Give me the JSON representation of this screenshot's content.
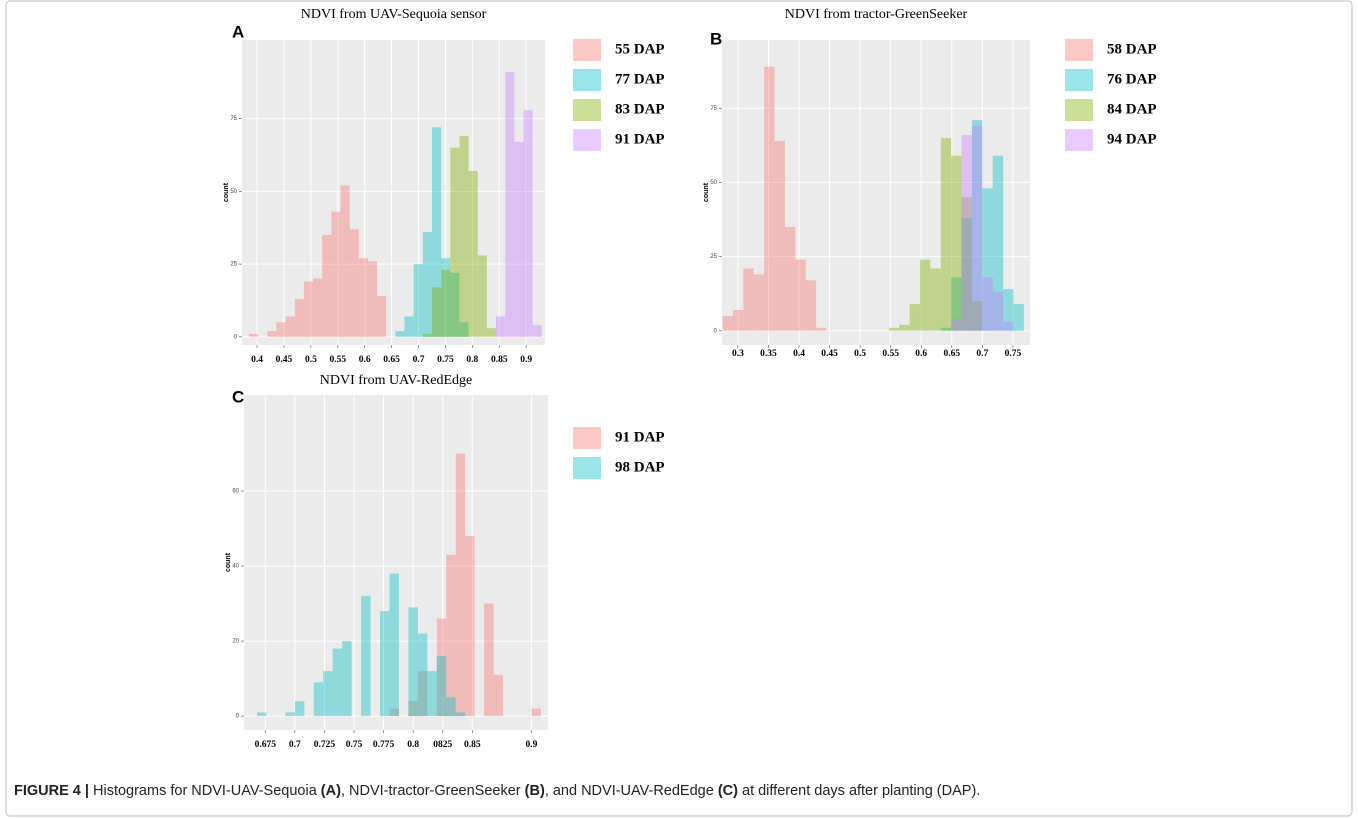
{
  "chart_data": [
    {
      "type": "histogram",
      "panel_label": "A",
      "title": "NDVI from UAV-Sequoia sensor",
      "y_label": "count",
      "bins": [
        0.385,
        0.402,
        0.419,
        0.436,
        0.453,
        0.47,
        0.487,
        0.504,
        0.521,
        0.538,
        0.555,
        0.572,
        0.589,
        0.606,
        0.623,
        0.64,
        0.657,
        0.674,
        0.691,
        0.708,
        0.725,
        0.742,
        0.759,
        0.776,
        0.793,
        0.81,
        0.827,
        0.844,
        0.861,
        0.878,
        0.895,
        0.912,
        0.929
      ],
      "series": [
        {
          "name": "55 DAP",
          "color": "#f8766d",
          "values": [
            1,
            0,
            2,
            5,
            7,
            13,
            19,
            20,
            35,
            43,
            52,
            37,
            27,
            26,
            14,
            0,
            0,
            0,
            0,
            0,
            0,
            0,
            0,
            0,
            0,
            0,
            0,
            0,
            0,
            0,
            0,
            0
          ]
        },
        {
          "name": "77 DAP",
          "color": "#00bfc4",
          "values": [
            0,
            0,
            0,
            0,
            0,
            0,
            0,
            0,
            0,
            0,
            0,
            0,
            0,
            0,
            0,
            0,
            2,
            7,
            25,
            36,
            72,
            27,
            22,
            5,
            0,
            0,
            0,
            0,
            0,
            0,
            0,
            0
          ]
        },
        {
          "name": "83 DAP",
          "color": "#7cae00",
          "values": [
            0,
            0,
            0,
            0,
            0,
            0,
            0,
            0,
            0,
            0,
            0,
            0,
            0,
            0,
            0,
            0,
            0,
            0,
            0,
            1,
            17,
            23,
            65,
            69,
            57,
            28,
            3,
            0,
            0,
            0,
            0,
            0
          ]
        },
        {
          "name": "91 DAP",
          "color": "#c77cff",
          "values": [
            0,
            0,
            0,
            0,
            0,
            0,
            0,
            0,
            0,
            0,
            0,
            0,
            0,
            0,
            0,
            0,
            0,
            0,
            0,
            0,
            0,
            0,
            0,
            0,
            0,
            0,
            0,
            7,
            91,
            67,
            78,
            4
          ]
        }
      ],
      "alpha": 0.4,
      "grid": true,
      "xlim": [
        0.372,
        0.935
      ],
      "xticks": [
        0.4,
        0.45,
        0.5,
        0.55,
        0.6,
        0.65,
        0.7,
        0.75,
        0.8,
        0.85,
        0.9
      ],
      "ylim": [
        -2.8,
        102
      ],
      "yticks": [
        0,
        25,
        50,
        75
      ]
    },
    {
      "type": "histogram",
      "panel_label": "B",
      "title": "NDVI from tractor-GreenSeeker",
      "y_label": "count",
      "bins": [
        0.275,
        0.292,
        0.309,
        0.326,
        0.343,
        0.36,
        0.377,
        0.394,
        0.411,
        0.428,
        0.445,
        0.462,
        0.479,
        0.496,
        0.513,
        0.53,
        0.547,
        0.564,
        0.581,
        0.598,
        0.615,
        0.632,
        0.649,
        0.666,
        0.683,
        0.7,
        0.717,
        0.734,
        0.751,
        0.768
      ],
      "series": [
        {
          "name": "58 DAP",
          "color": "#f8766d",
          "values": [
            5,
            7,
            21,
            19,
            89,
            64,
            35,
            24,
            17,
            1,
            0,
            0,
            0,
            0,
            0,
            0,
            0,
            0,
            0,
            0,
            0,
            0,
            0,
            0,
            0,
            0,
            0,
            0,
            0
          ]
        },
        {
          "name": "76 DAP",
          "color": "#00bfc4",
          "values": [
            0,
            0,
            0,
            0,
            0,
            0,
            0,
            0,
            0,
            0,
            0,
            0,
            0,
            0,
            0,
            0,
            0,
            0,
            0,
            0,
            0,
            1,
            18,
            38,
            71,
            48,
            59,
            14,
            9
          ]
        },
        {
          "name": "84 DAP",
          "color": "#7cae00",
          "values": [
            0,
            0,
            0,
            0,
            0,
            0,
            0,
            0,
            0,
            0,
            0,
            0,
            0,
            0,
            0,
            0,
            1,
            2,
            9,
            24,
            21,
            65,
            59,
            45,
            10,
            0,
            0,
            0,
            0
          ]
        },
        {
          "name": "94 DAP",
          "color": "#c77cff",
          "values": [
            0,
            0,
            0,
            0,
            0,
            0,
            0,
            0,
            0,
            0,
            0,
            0,
            0,
            0,
            0,
            0,
            0,
            0,
            0,
            0,
            0,
            0,
            4,
            66,
            69,
            18,
            13,
            3,
            0
          ]
        }
      ],
      "alpha": 0.4,
      "grid": true,
      "xlim": [
        0.274,
        0.778
      ],
      "xticks": [
        0.3,
        0.35,
        0.4,
        0.45,
        0.5,
        0.55,
        0.6,
        0.65,
        0.7,
        0.75
      ],
      "ylim": [
        -4.8,
        98
      ],
      "yticks": [
        0,
        25,
        50,
        75
      ]
    },
    {
      "type": "histogram",
      "panel_label": "C",
      "title": "NDVI from UAV-RedEdge",
      "y_label": "count",
      "bins": [
        0.668,
        0.676,
        0.684,
        0.692,
        0.7,
        0.708,
        0.716,
        0.724,
        0.732,
        0.74,
        0.748,
        0.756,
        0.764,
        0.772,
        0.78,
        0.788,
        0.796,
        0.804,
        0.812,
        0.82,
        0.828,
        0.836,
        0.844,
        0.852,
        0.86,
        0.868,
        0.876,
        0.884,
        0.892,
        0.9,
        0.908
      ],
      "series": [
        {
          "name": "91 DAP",
          "color": "#f8766d",
          "values": [
            0,
            0,
            0,
            0,
            0,
            0,
            0,
            0,
            0,
            0,
            0,
            0,
            0,
            0,
            2,
            0,
            4,
            12,
            0,
            26,
            43,
            70,
            48,
            0,
            30,
            11,
            0,
            0,
            0,
            2
          ]
        },
        {
          "name": "98 DAP",
          "color": "#00bfc4",
          "values": [
            1,
            0,
            0,
            1,
            4,
            0,
            9,
            12,
            18,
            20,
            0,
            32,
            0,
            28,
            38,
            0,
            29,
            22,
            12,
            16,
            5,
            1,
            0,
            0,
            0,
            0,
            0,
            0,
            0,
            0
          ]
        }
      ],
      "alpha": 0.4,
      "grid": true,
      "xlim": [
        0.657,
        0.914
      ],
      "xticks": [
        0.675,
        0.7,
        0.725,
        0.75,
        0.775,
        0.8,
        {
          "value": 0.825,
          "label": "0825"
        },
        0.85,
        0.9
      ],
      "ylim": [
        -3.7,
        85.6
      ],
      "yticks": [
        0,
        20,
        40,
        60
      ]
    }
  ],
  "caption": [
    "FIGURE 4 |",
    "Histograms for NDVI-UAV-Sequoia",
    "(A)",
    ", NDVI-tractor-GreenSeeker",
    "(B)",
    ", and NDVI-UAV-RedEdge",
    "(C)",
    "at different days after planting (DAP)."
  ]
}
